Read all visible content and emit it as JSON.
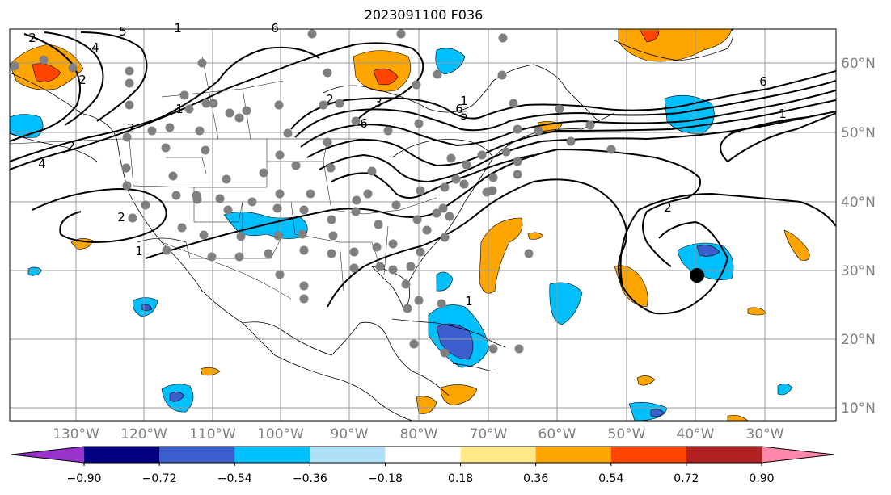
{
  "title": "2023091100 F036",
  "map": {
    "lon_labels": [
      "130°W",
      "120°W",
      "110°W",
      "100°W",
      "90°W",
      "80°W",
      "70°W",
      "60°W",
      "50°W",
      "40°W",
      "30°W"
    ],
    "lat_labels": [
      "60°N",
      "50°N",
      "40°N",
      "30°N",
      "20°N",
      "10°N"
    ],
    "contour_labels": [
      "2",
      "4",
      "5",
      "2",
      "2",
      "1",
      "2",
      "4",
      "6",
      "3",
      "2",
      "1",
      "6",
      "1",
      "6",
      "5",
      "1",
      "2",
      "2",
      "1",
      "1",
      "6"
    ]
  },
  "colorbar": {
    "ticks": [
      "−0.90",
      "−0.72",
      "−0.54",
      "−0.36",
      "−0.18",
      "0.18",
      "0.36",
      "0.54",
      "0.72",
      "0.90"
    ],
    "colors": [
      "#9932cc",
      "#000080",
      "#3a5fcd",
      "#00bfff",
      "#b0e0f8",
      "#ffffff",
      "#ffe88a",
      "#ffa500",
      "#ff4500",
      "#b22222",
      "#ff88aa"
    ]
  },
  "palette": {
    "light_blue": "#00bfff",
    "royal_blue": "#3a5fcd",
    "orange": "#ffa500",
    "red_orange": "#ff4500",
    "grid": "#999999",
    "station": "#808080"
  }
}
